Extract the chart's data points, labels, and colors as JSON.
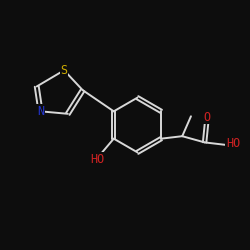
{
  "background": "#0d0d0d",
  "bond_color": "#d8d8d8",
  "atom_colors": {
    "S": "#ccaa00",
    "N": "#2233cc",
    "O": "#cc2222",
    "C": "#d8d8d8"
  },
  "bond_width": 1.4,
  "font_size": 8.5,
  "figsize": [
    2.5,
    2.5
  ],
  "dpi": 100,
  "xlim": [
    0,
    10
  ],
  "ylim": [
    1.5,
    8.5
  ]
}
